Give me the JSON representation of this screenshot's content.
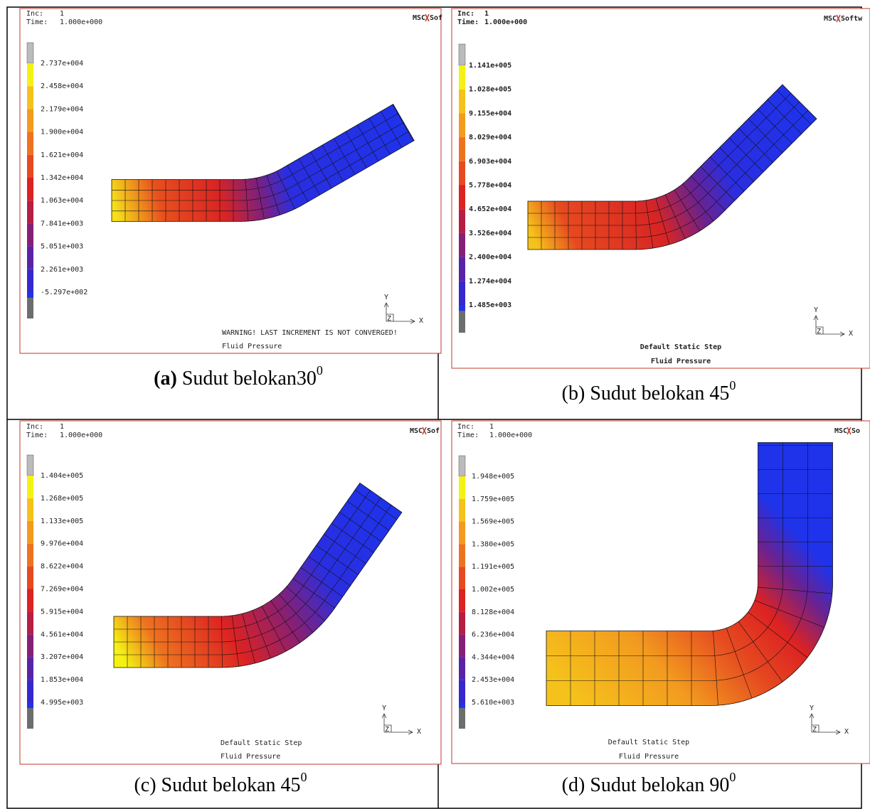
{
  "panels": [
    {
      "inc_label": "Inc:",
      "inc": "1",
      "time_label": "Time:",
      "time": "1.000e+000",
      "logo": "MSC",
      "logo_tail": "Sof",
      "legend": [
        "2.737e+004",
        "2.458e+004",
        "2.179e+004",
        "1.900e+004",
        "1.621e+004",
        "1.342e+004",
        "1.063e+004",
        "7.841e+003",
        "5.051e+003",
        "2.261e+003",
        "-5.297e+002"
      ],
      "messages": [
        "WARNING! LAST INCREMENT IS NOT CONVERGED!",
        "Fluid Pressure"
      ],
      "axes": {
        "y": "Y",
        "x": "X",
        "z": "Z"
      },
      "caption": {
        "label": "(a)",
        "text": "Sudut belokan30",
        "sup": "0"
      }
    },
    {
      "inc_label": "Inc:",
      "inc": "1",
      "time_label": "Time:",
      "time": "1.000e+000",
      "logo": "MSC",
      "logo_tail": "Softw",
      "legend": [
        "1.141e+005",
        "1.028e+005",
        "9.155e+004",
        "8.029e+004",
        "6.903e+004",
        "5.778e+004",
        "4.652e+004",
        "3.526e+004",
        "2.400e+004",
        "1.274e+004",
        "1.485e+003"
      ],
      "messages": [
        "Default Static Step",
        "Fluid Pressure"
      ],
      "axes": {
        "y": "Y",
        "x": "X",
        "z": "Z"
      },
      "caption": {
        "label": "(b)",
        "text": "Sudut belokan 45",
        "sup": "0"
      }
    },
    {
      "inc_label": "Inc:",
      "inc": "1",
      "time_label": "Time:",
      "time": "1.000e+000",
      "logo": "MSC",
      "logo_tail": "Sof",
      "legend": [
        "1.404e+005",
        "1.268e+005",
        "1.133e+005",
        "9.976e+004",
        "8.622e+004",
        "7.269e+004",
        "5.915e+004",
        "4.561e+004",
        "3.207e+004",
        "1.853e+004",
        "4.995e+003"
      ],
      "messages": [
        "Default Static Step",
        "Fluid Pressure"
      ],
      "axes": {
        "y": "Y",
        "x": "X",
        "z": "Z"
      },
      "caption": {
        "label": "(c)",
        "text": "Sudut belokan 45",
        "sup": "0"
      }
    },
    {
      "inc_label": "Inc:",
      "inc": "1",
      "time_label": "Time:",
      "time": "1.000e+000",
      "logo": "MSC",
      "logo_tail": "So",
      "legend": [
        "1.948e+005",
        "1.759e+005",
        "1.569e+005",
        "1.380e+005",
        "1.191e+005",
        "1.002e+005",
        "8.128e+004",
        "6.236e+004",
        "4.344e+004",
        "2.453e+004",
        "5.610e+003"
      ],
      "messages": [
        "Default Static Step",
        "Fluid Pressure"
      ],
      "axes": {
        "y": "Y",
        "x": "X",
        "z": "Z"
      },
      "caption": {
        "label": "(d)",
        "text": "Sudut belokan 90",
        "sup": "0"
      }
    }
  ]
}
